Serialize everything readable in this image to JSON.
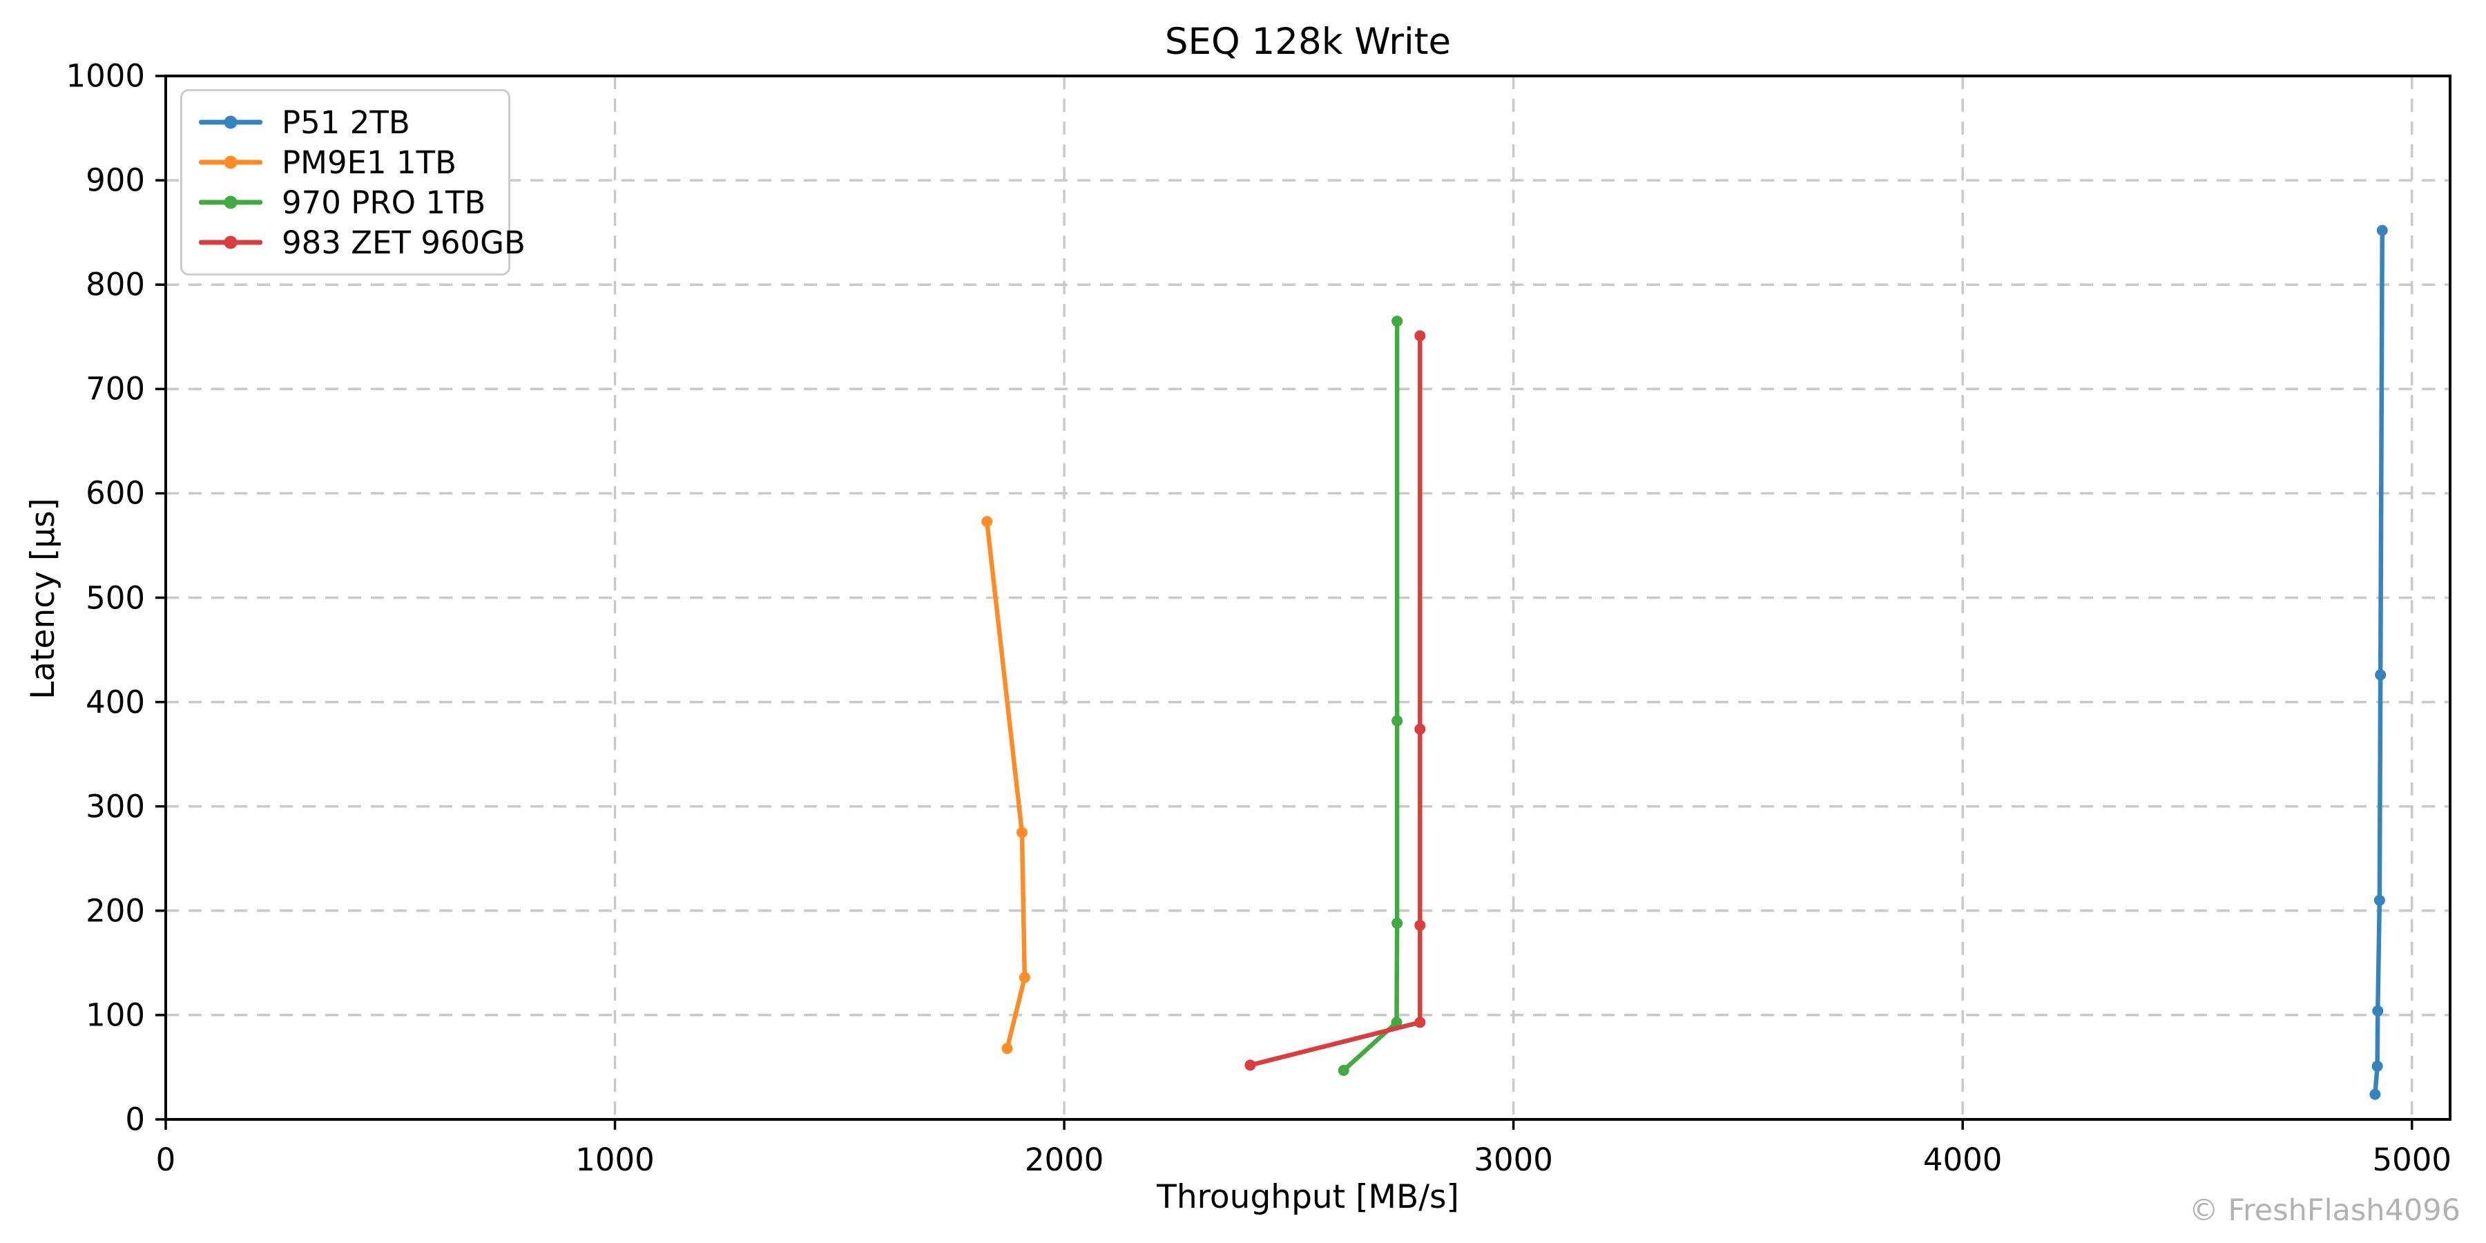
{
  "watermark": "© FreshFlash4096",
  "chart_data": {
    "type": "line",
    "title": "SEQ 128k Write",
    "xlabel": "Throughput [MB/s]",
    "ylabel": "Latency [µs]",
    "xlim": [
      0,
      5085
    ],
    "ylim": [
      0,
      1000
    ],
    "xticks": [
      0,
      1000,
      2000,
      3000,
      4000,
      5000
    ],
    "yticks": [
      0,
      100,
      200,
      300,
      400,
      500,
      600,
      700,
      800,
      900,
      1000
    ],
    "grid": "dashed, both axes, light gray",
    "legend_position": "upper left",
    "grid_color": "#c9c9c9",
    "spine_color": "#000000",
    "series": [
      {
        "name": "P51 2TB",
        "color": "#3585bc",
        "points": [
          [
            4918,
            24
          ],
          [
            4923,
            51
          ],
          [
            4924,
            104
          ],
          [
            4928,
            210
          ],
          [
            4930,
            426
          ],
          [
            4934,
            852
          ]
        ]
      },
      {
        "name": "PM9E1 1TB",
        "color": "#ff8c26",
        "points": [
          [
            1873,
            68
          ],
          [
            1912,
            136
          ],
          [
            1906,
            275
          ],
          [
            1828,
            573
          ]
        ]
      },
      {
        "name": "970 PRO 1TB",
        "color": "#41aa41",
        "points": [
          [
            2622,
            47
          ],
          [
            2740,
            93
          ],
          [
            2741,
            188
          ],
          [
            2741,
            382
          ],
          [
            2741,
            765
          ]
        ]
      },
      {
        "name": "983 ZET 960GB",
        "color": "#da3d3e",
        "points": [
          [
            2414,
            52
          ],
          [
            2792,
            93
          ],
          [
            2792,
            186
          ],
          [
            2792,
            374
          ],
          [
            2792,
            751
          ]
        ]
      }
    ]
  }
}
